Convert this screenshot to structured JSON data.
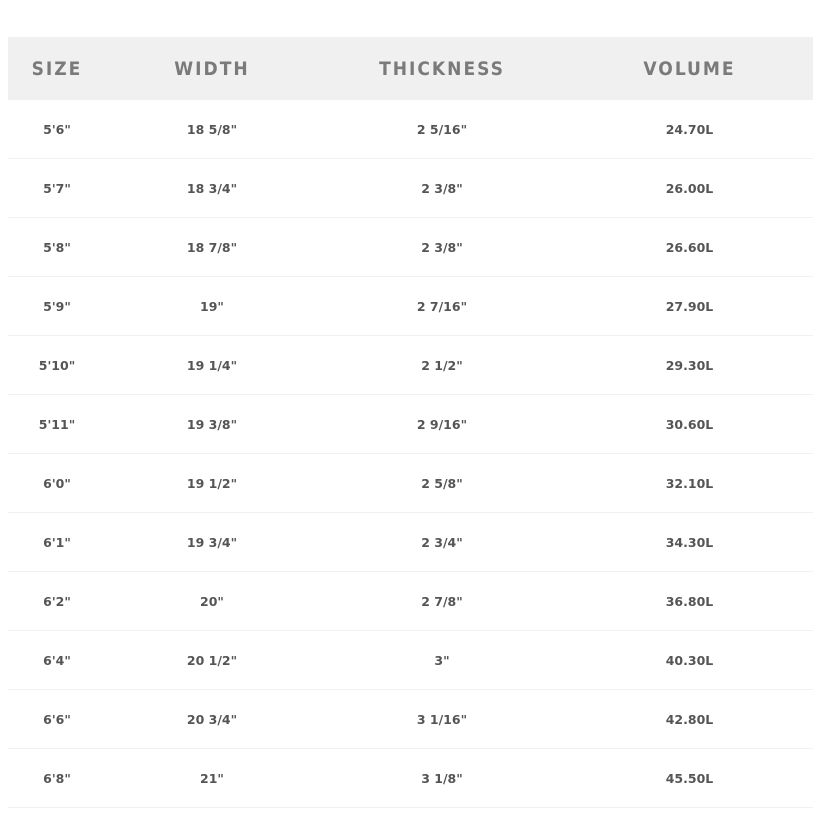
{
  "table": {
    "headers": [
      "SIZE",
      "WIDTH",
      "THICKNESS",
      "VOLUME"
    ],
    "rows": [
      [
        "5'6\"",
        "18 5/8\"",
        "2 5/16\"",
        "24.70L"
      ],
      [
        "5'7\"",
        "18 3/4\"",
        "2 3/8\"",
        "26.00L"
      ],
      [
        "5'8\"",
        "18 7/8\"",
        "2 3/8\"",
        "26.60L"
      ],
      [
        "5'9\"",
        "19\"",
        "2 7/16\"",
        "27.90L"
      ],
      [
        "5'10\"",
        "19 1/4\"",
        "2 1/2\"",
        "29.30L"
      ],
      [
        "5'11\"",
        "19 3/8\"",
        "2 9/16\"",
        "30.60L"
      ],
      [
        "6'0\"",
        "19 1/2\"",
        "2 5/8\"",
        "32.10L"
      ],
      [
        "6'1\"",
        "19 3/4\"",
        "2 3/4\"",
        "34.30L"
      ],
      [
        "6'2\"",
        "20\"",
        "2 7/8\"",
        "36.80L"
      ],
      [
        "6'4\"",
        "20 1/2\"",
        "3\"",
        "40.30L"
      ],
      [
        "6'6\"",
        "20 3/4\"",
        "3 1/16\"",
        "42.80L"
      ],
      [
        "6'8\"",
        "21\"",
        "3 1/8\"",
        "45.50L"
      ]
    ]
  }
}
